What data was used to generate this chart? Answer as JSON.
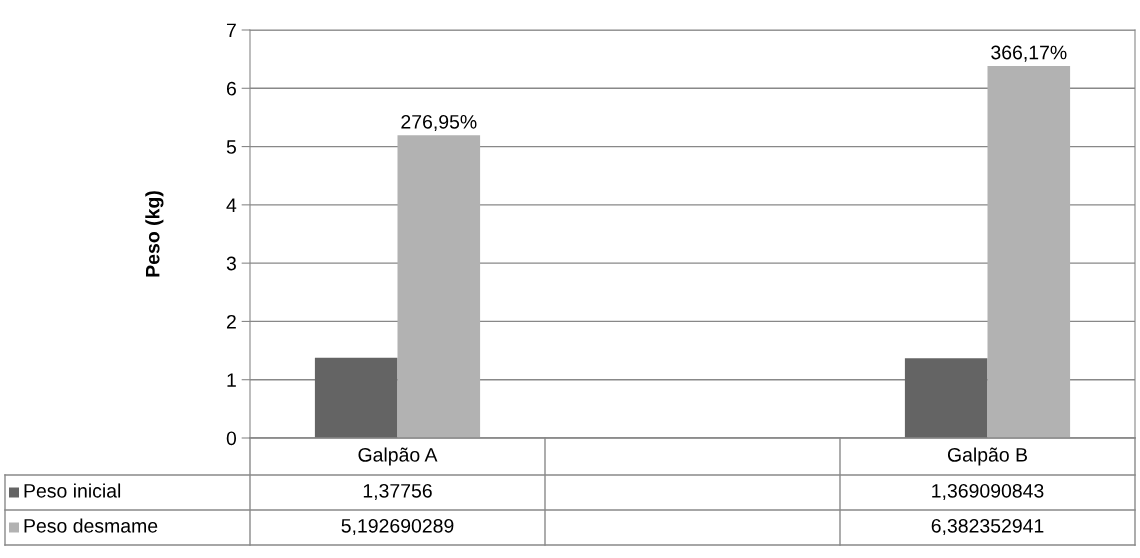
{
  "chart_data": {
    "type": "bar",
    "ylabel": "Peso (kg)",
    "categories": [
      "Galpão A",
      null,
      "Galpão B"
    ],
    "series": [
      {
        "name": "Peso inicial",
        "color": "#646464",
        "values": [
          1.37756,
          null,
          1.369090843
        ],
        "value_labels": [
          "1,37756",
          null,
          "1,369090843"
        ]
      },
      {
        "name": "Peso desmame",
        "color": "#b2b2b2",
        "values": [
          5.192690289,
          null,
          6.382352941
        ],
        "value_labels": [
          "5,192690289",
          null,
          "6,382352941"
        ]
      }
    ],
    "annotations": [
      {
        "text": "276,95%",
        "x": "Galpão A",
        "y": 5.192690289
      },
      {
        "text": "366,17%",
        "x": "Galpão B",
        "y": 6.382352941
      }
    ],
    "ylim": [
      0,
      7
    ],
    "yticks": [
      0,
      1,
      2,
      3,
      4,
      5,
      6,
      7
    ],
    "grid": "y",
    "legend": "bottom"
  }
}
